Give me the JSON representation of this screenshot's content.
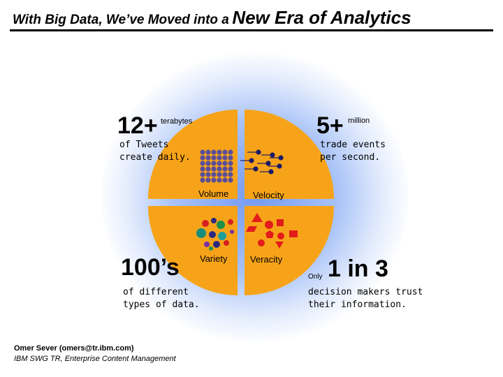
{
  "slide": {
    "title_small": "With Big Data, We’ve Moved into a",
    "title_big": "New Era of Analytics"
  },
  "stats": {
    "tweets": {
      "number": "12+",
      "unit": "terabytes",
      "caption_line1": "of Tweets",
      "caption_line2": "create daily."
    },
    "trades": {
      "number": "5+",
      "unit": "million",
      "caption_line1": "trade events",
      "caption_line2": "per second."
    },
    "types": {
      "number": "100’s",
      "caption_line1": "of different",
      "caption_line2": "types of data."
    },
    "trust": {
      "prefix": "Only",
      "number": "1 in 3",
      "caption_line1": "decision makers trust",
      "caption_line2": "their information."
    }
  },
  "quadrants": {
    "volume": "Volume",
    "velocity": "Velocity",
    "variety": "Variety",
    "veracity": "Veracity"
  },
  "colors": {
    "pie": "#F7A319",
    "glow": "#7A9BEF",
    "volume_dot": "#5A4E9A",
    "velocity_dot": "#1A1A66",
    "veracity_shape": "#E31B1B"
  },
  "credit": {
    "line1": "Omer Sever (omers@tr.ibm.com)",
    "line2": "IBM SWG TR, Enterprise Content Management"
  }
}
